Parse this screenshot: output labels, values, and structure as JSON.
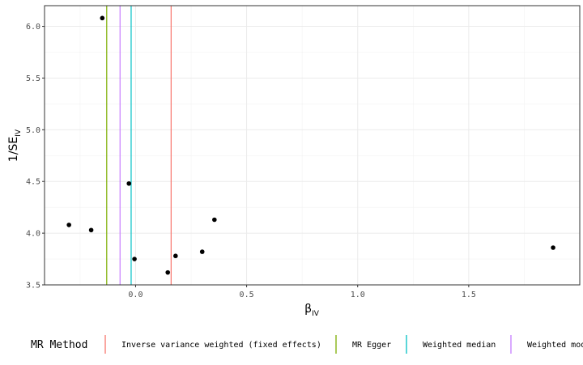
{
  "chart_data": {
    "type": "scatter",
    "xlabel_base": "β",
    "xlabel_sub": "IV",
    "ylabel_base": "1/SE",
    "ylabel_sub": "IV",
    "xlim": [
      -0.41,
      2.0
    ],
    "ylim": [
      3.5,
      6.2
    ],
    "xticks": [
      0.0,
      0.5,
      1.0,
      1.5
    ],
    "xtick_labels": [
      "0.0",
      "0.5",
      "1.0",
      "1.5"
    ],
    "yticks": [
      3.5,
      4.0,
      4.5,
      5.0,
      5.5,
      6.0
    ],
    "ytick_labels": [
      "3.5",
      "4.0",
      "4.5",
      "5.0",
      "5.5",
      "6.0"
    ],
    "grid": true,
    "points": [
      {
        "x": -0.3,
        "y": 4.08
      },
      {
        "x": -0.2,
        "y": 4.03
      },
      {
        "x": -0.15,
        "y": 6.08
      },
      {
        "x": -0.03,
        "y": 4.48
      },
      {
        "x": -0.005,
        "y": 3.75
      },
      {
        "x": 0.145,
        "y": 3.62
      },
      {
        "x": 0.18,
        "y": 3.78
      },
      {
        "x": 0.3,
        "y": 3.82
      },
      {
        "x": 0.355,
        "y": 4.13
      },
      {
        "x": 1.88,
        "y": 3.86
      }
    ],
    "vlines": [
      {
        "name": "Inverse variance weighted (fixed effects)",
        "x": 0.16,
        "color": "#F8766D"
      },
      {
        "name": "MR Egger",
        "x": -0.13,
        "color": "#7CAE00"
      },
      {
        "name": "Weighted median",
        "x": -0.02,
        "color": "#00BFC4"
      },
      {
        "name": "Weighted mode",
        "x": -0.07,
        "color": "#C77CFF"
      }
    ],
    "legend_title": "MR Method",
    "legend_position": "bottom"
  }
}
